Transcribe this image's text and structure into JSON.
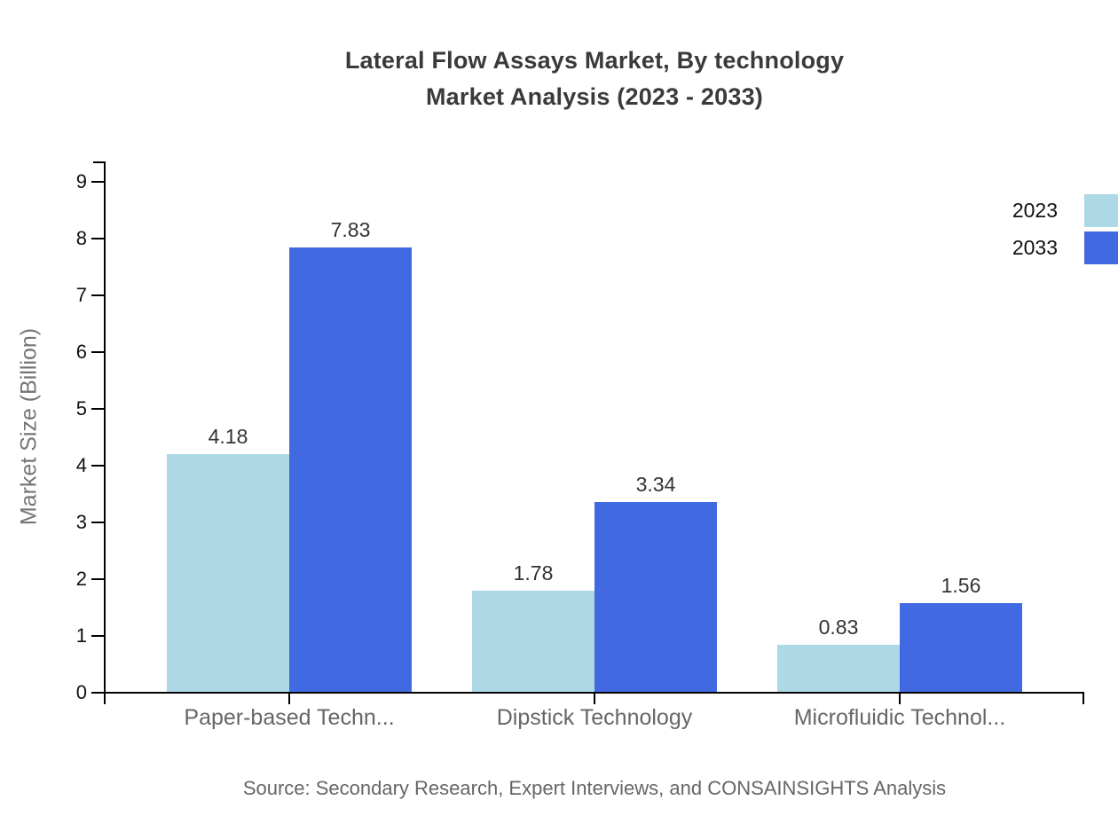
{
  "title": {
    "line1": "Lateral Flow Assays Market, By technology",
    "line2": "Market Analysis (2023 - 2033)"
  },
  "y_axis": {
    "label": "Market Size (Billion)",
    "ticks": [
      0,
      1,
      2,
      3,
      4,
      5,
      6,
      7,
      8,
      9
    ]
  },
  "legend": [
    {
      "label": "2023",
      "color": "#add8e6"
    },
    {
      "label": "2033",
      "color": "#4169e1"
    }
  ],
  "source_note": "Source: Secondary Research, Expert Interviews, and CONSAINSIGHTS Analysis",
  "colors": {
    "series_2023": "#add8e6",
    "series_2033": "#4169e1",
    "axis": "#000000",
    "title_text": "#3a3a3a",
    "category_text": "#666666",
    "value_text": "#333333",
    "source_text": "#666666"
  },
  "chart_data": {
    "type": "bar",
    "title": "Lateral Flow Assays Market, By technology Market Analysis (2023 - 2033)",
    "categories": [
      "Paper-based Techn...",
      "Dipstick Technology",
      "Microfluidic Technol..."
    ],
    "series": [
      {
        "name": "2023",
        "color": "#add8e6",
        "values": [
          4.18,
          1.78,
          0.83
        ]
      },
      {
        "name": "2033",
        "color": "#4169e1",
        "values": [
          7.83,
          3.34,
          1.56
        ]
      }
    ],
    "xlabel": "",
    "ylabel": "Market Size (Billion)",
    "ylim": [
      0,
      9
    ],
    "y_ticks": [
      0,
      1,
      2,
      3,
      4,
      5,
      6,
      7,
      8,
      9
    ],
    "grid": false,
    "legend_position": "top-right",
    "value_labels": true
  }
}
